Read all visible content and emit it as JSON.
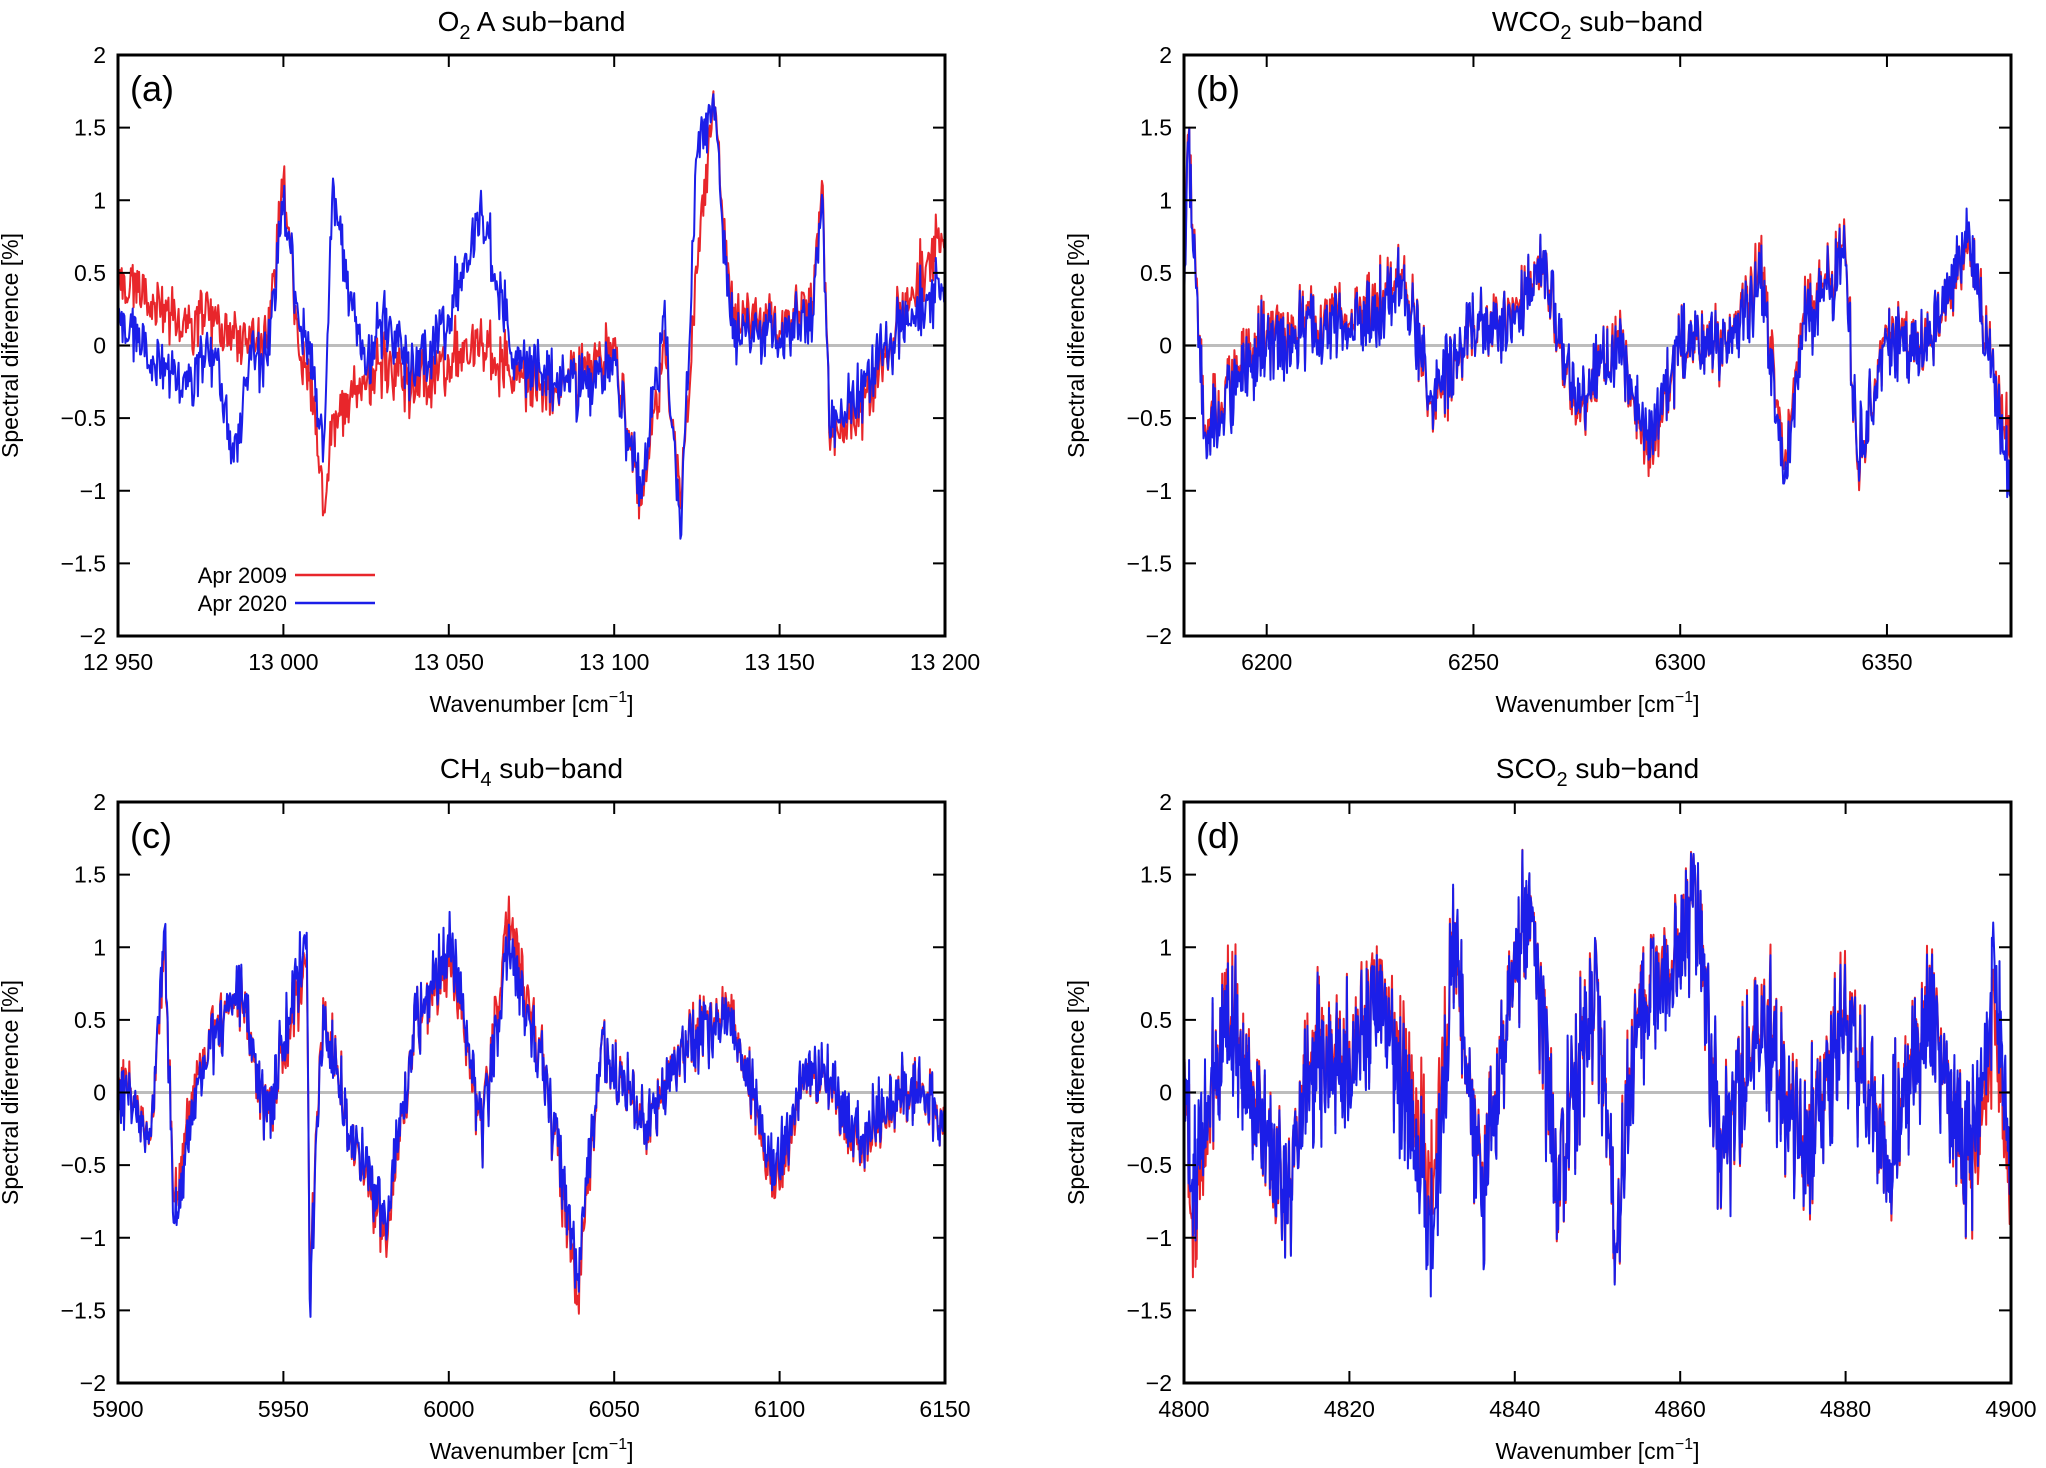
{
  "legend": {
    "series_1": "Apr 2009",
    "series_2": "Apr 2020"
  },
  "colors": {
    "series_1": "#e8262b",
    "series_2": "#1b1ee8",
    "zero_line": "#bdbdbd",
    "axis": "#000000"
  },
  "chart_data": [
    {
      "type": "line",
      "panel_label": "(a)",
      "title": "O₂ A sub-band",
      "title_main": "O",
      "title_sub": "2",
      "title_rest": " A sub−band",
      "xlabel": "Wavenumber [cm⁻¹]",
      "ylabel": "Spectral diference [%]",
      "xlim": [
        12950,
        13200
      ],
      "ylim": [
        -2,
        2
      ],
      "xticks": [
        12950,
        13000,
        13050,
        13100,
        13150,
        13200
      ],
      "xtick_labels": [
        "12 950",
        "13 000",
        "13 050",
        "13 100",
        "13 150",
        "13 200"
      ],
      "yticks": [
        -2,
        -1.5,
        -1,
        -0.5,
        0,
        0.5,
        1,
        1.5,
        2
      ],
      "ytick_labels": [
        "−2",
        "−1.5",
        "−1",
        "−0.5",
        "0",
        "0.5",
        "1",
        "1.5",
        "2"
      ],
      "legend_position": "bottom-left",
      "series": [
        {
          "name": "Apr 2009",
          "x": [
            12950,
            12960,
            12970,
            12980,
            12985,
            12990,
            12995,
            13000,
            13005,
            13010,
            13012,
            13015,
            13020,
            13025,
            13030,
            13040,
            13050,
            13060,
            13070,
            13080,
            13090,
            13100,
            13108,
            13115,
            13120,
            13125,
            13130,
            13135,
            13140,
            13150,
            13160,
            13163,
            13165,
            13170,
            13180,
            13190,
            13200
          ],
          "y": [
            0.45,
            0.3,
            0.2,
            0.15,
            0.05,
            0.1,
            0.0,
            1.15,
            -0.1,
            -0.5,
            -1.17,
            -0.5,
            -0.4,
            -0.3,
            -0.1,
            -0.3,
            -0.1,
            0.0,
            -0.2,
            -0.3,
            -0.2,
            0.0,
            -1.1,
            0.0,
            -1.1,
            0.5,
            1.75,
            0.3,
            0.2,
            0.1,
            0.3,
            1.1,
            -0.6,
            -0.6,
            -0.2,
            0.4,
            0.75
          ]
        },
        {
          "name": "Apr 2020",
          "x": [
            12950,
            12960,
            12970,
            12980,
            12985,
            12990,
            12995,
            13000,
            13005,
            13010,
            13012,
            13015,
            13020,
            13025,
            13030,
            13040,
            13050,
            13060,
            13070,
            13080,
            13090,
            13100,
            13108,
            13115,
            13120,
            13125,
            13130,
            13135,
            13140,
            13150,
            13160,
            13163,
            13165,
            13170,
            13180,
            13190,
            13200
          ],
          "y": [
            0.2,
            -0.1,
            -0.2,
            -0.1,
            -0.8,
            0.0,
            -0.1,
            1.0,
            0.1,
            -0.3,
            -0.8,
            1.15,
            0.3,
            -0.2,
            0.2,
            -0.2,
            0.2,
            0.9,
            -0.1,
            -0.2,
            -0.3,
            -0.1,
            -1.05,
            0.2,
            -1.33,
            1.3,
            1.73,
            0.2,
            0.1,
            0.05,
            0.2,
            1.0,
            -0.55,
            -0.5,
            -0.1,
            0.25,
            0.4
          ]
        }
      ]
    },
    {
      "type": "line",
      "panel_label": "(b)",
      "title": "WCO₂ sub-band",
      "title_main": "WCO",
      "title_sub": "2",
      "title_rest": " sub−band",
      "xlabel": "Wavenumber [cm⁻¹]",
      "ylabel": "Spectral diference [%]",
      "xlim": [
        6180,
        6380
      ],
      "ylim": [
        -2,
        2
      ],
      "xticks": [
        6200,
        6250,
        6300,
        6350
      ],
      "xtick_labels": [
        "6200",
        "6250",
        "6300",
        "6350"
      ],
      "yticks": [
        -2,
        -1.5,
        -1,
        -0.5,
        0,
        0.5,
        1,
        1.5,
        2
      ],
      "ytick_labels": [
        "−2",
        "−1.5",
        "−1",
        "−0.5",
        "0",
        "0.5",
        "1",
        "1.5",
        "2"
      ],
      "series": [
        {
          "name": "Apr 2009",
          "x": [
            6180,
            6181,
            6185,
            6200,
            6220,
            6233,
            6240,
            6250,
            6260,
            6267,
            6275,
            6285,
            6292,
            6300,
            6310,
            6320,
            6325,
            6330,
            6340,
            6343,
            6350,
            6360,
            6370,
            6373,
            6376,
            6380
          ],
          "y": [
            0.3,
            1.45,
            -0.55,
            0.1,
            0.15,
            0.5,
            -0.4,
            0.1,
            0.2,
            0.65,
            -0.5,
            0.1,
            -0.75,
            0.0,
            0.0,
            0.5,
            -0.85,
            0.2,
            0.6,
            -0.85,
            0.1,
            0.0,
            0.7,
            0.2,
            -0.2,
            -0.7
          ]
        },
        {
          "name": "Apr 2020",
          "x": [
            6180,
            6181,
            6185,
            6200,
            6220,
            6233,
            6240,
            6250,
            6260,
            6267,
            6275,
            6285,
            6292,
            6300,
            6310,
            6320,
            6325,
            6330,
            6340,
            6343,
            6350,
            6360,
            6370,
            6373,
            6376,
            6380
          ],
          "y": [
            0.2,
            1.4,
            -0.6,
            0.05,
            0.1,
            0.45,
            -0.35,
            0.1,
            0.15,
            0.65,
            -0.45,
            0.05,
            -0.65,
            0.0,
            0.0,
            0.4,
            -0.95,
            0.15,
            0.55,
            -0.8,
            0.05,
            0.0,
            0.75,
            0.15,
            -0.2,
            -1.0
          ]
        }
      ]
    },
    {
      "type": "line",
      "panel_label": "(c)",
      "title": "CH₄ sub-band",
      "title_main": "CH",
      "title_sub": "4",
      "title_rest": " sub−band",
      "xlabel": "Wavenumber [cm⁻¹]",
      "ylabel": "Spectral diference [%]",
      "xlim": [
        5900,
        6150
      ],
      "ylim": [
        -2,
        2
      ],
      "xticks": [
        5900,
        5950,
        6000,
        6050,
        6100,
        6150
      ],
      "xtick_labels": [
        "5900",
        "5950",
        "6000",
        "6050",
        "6100",
        "6150"
      ],
      "yticks": [
        -2,
        -1.5,
        -1,
        -0.5,
        0,
        0.5,
        1,
        1.5,
        2
      ],
      "ytick_labels": [
        "−2",
        "−1.5",
        "−1",
        "−0.5",
        "0",
        "0.5",
        "1",
        "1.5",
        "2"
      ],
      "series": [
        {
          "name": "Apr 2009",
          "x": [
            5900,
            5910,
            5914,
            5917,
            5925,
            5937,
            5945,
            5957,
            5958,
            5962,
            5970,
            5981,
            5990,
            6001,
            6010,
            6018,
            6030,
            6039,
            6046,
            6060,
            6070,
            6085,
            6098,
            6110,
            6125,
            6140,
            6150
          ],
          "y": [
            0.1,
            -0.3,
            1.05,
            -0.75,
            0.2,
            0.7,
            -0.2,
            0.95,
            -1.35,
            0.65,
            -0.3,
            -1.0,
            0.5,
            0.9,
            -0.3,
            1.2,
            0.0,
            -1.4,
            0.3,
            -0.2,
            0.3,
            0.6,
            -0.6,
            0.2,
            -0.35,
            0.1,
            -0.2
          ]
        },
        {
          "name": "Apr 2020",
          "x": [
            5900,
            5910,
            5914,
            5917,
            5925,
            5937,
            5945,
            5957,
            5958,
            5962,
            5970,
            5981,
            5990,
            6001,
            6010,
            6018,
            6030,
            6039,
            6046,
            6060,
            6070,
            6085,
            6098,
            6110,
            6125,
            6140,
            6150
          ],
          "y": [
            0.05,
            -0.3,
            1.13,
            -0.9,
            0.15,
            0.72,
            -0.2,
            1.1,
            -1.42,
            0.6,
            -0.3,
            -0.9,
            0.5,
            1.0,
            -0.3,
            1.0,
            0.0,
            -1.25,
            0.3,
            -0.2,
            0.3,
            0.55,
            -0.5,
            0.2,
            -0.3,
            0.1,
            -0.2
          ]
        }
      ]
    },
    {
      "type": "line",
      "panel_label": "(d)",
      "title": "SCO₂ sub-band",
      "title_main": "SCO",
      "title_sub": "2",
      "title_rest": " sub−band",
      "xlabel": "Wavenumber [cm⁻¹]",
      "ylabel": "Spectral diference [%]",
      "xlim": [
        4800,
        4900
      ],
      "ylim": [
        -2,
        2
      ],
      "xticks": [
        4800,
        4820,
        4840,
        4860,
        4880,
        4900
      ],
      "xtick_labels": [
        "4800",
        "4820",
        "4840",
        "4860",
        "4880",
        "4900"
      ],
      "yticks": [
        -2,
        -1.5,
        -1,
        -0.5,
        0,
        0.5,
        1,
        1.5,
        2
      ],
      "ytick_labels": [
        "−2",
        "−1.5",
        "−1",
        "−0.5",
        "0",
        "0.5",
        "1",
        "1.5",
        "2"
      ],
      "series": [
        {
          "name": "Apr 2009",
          "x": [
            4800,
            4801,
            4805,
            4810,
            4812.5,
            4815,
            4820,
            4825,
            4830,
            4833,
            4836,
            4840,
            4842,
            4845,
            4850,
            4852,
            4855,
            4858,
            4862,
            4865,
            4870,
            4875,
            4880,
            4885,
            4890,
            4895,
            4898,
            4900
          ],
          "y": [
            0.1,
            -0.85,
            0.6,
            -0.3,
            -0.9,
            0.2,
            0.35,
            0.55,
            -0.7,
            1.1,
            -0.8,
            0.9,
            1.3,
            -0.6,
            0.7,
            -0.95,
            0.5,
            0.85,
            1.2,
            -0.5,
            0.6,
            -0.4,
            0.6,
            -0.5,
            0.55,
            -0.6,
            0.6,
            -0.75
          ]
        },
        {
          "name": "Apr 2020",
          "x": [
            4800,
            4801,
            4805,
            4810,
            4812.5,
            4815,
            4820,
            4825,
            4830,
            4833,
            4836,
            4840,
            4842,
            4845,
            4850,
            4852,
            4855,
            4858,
            4862,
            4865,
            4870,
            4875,
            4880,
            4885,
            4890,
            4895,
            4898,
            4900
          ],
          "y": [
            0.05,
            -0.6,
            0.5,
            -0.3,
            -0.9,
            0.15,
            0.3,
            0.5,
            -1.05,
            1.15,
            -0.85,
            0.9,
            1.3,
            -0.6,
            0.7,
            -0.95,
            0.45,
            0.8,
            1.2,
            -0.5,
            0.55,
            -0.4,
            0.55,
            -0.5,
            0.5,
            -0.55,
            0.9,
            -0.6
          ]
        }
      ]
    }
  ]
}
